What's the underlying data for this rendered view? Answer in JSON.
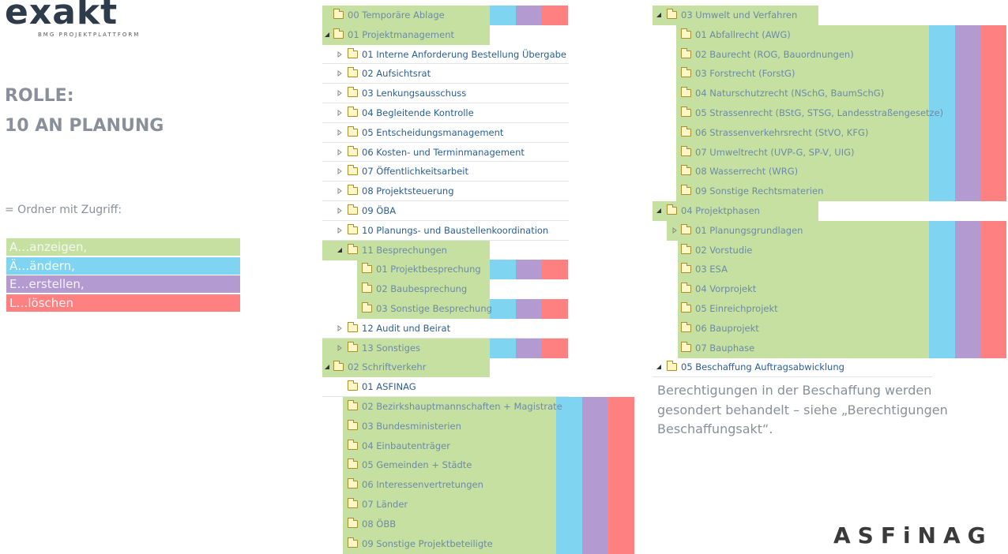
{
  "header": {
    "logo": "exakt",
    "tagline": "BMG PROJEKTPLATTFORM"
  },
  "role": {
    "label": "ROLLE:",
    "name": "10 AN PLANUNG"
  },
  "legend": {
    "title": "= Ordner mit Zugriff:",
    "items": [
      "A…anzeigen,",
      "Ä…ändern,",
      "E…erstellen,",
      "L…löschen"
    ]
  },
  "tree_left": [
    "00 Temporäre Ablage",
    "01 Projektmanagement",
    "01 Interne Anforderung Bestellung Übergabe",
    "02 Aufsichtsrat",
    "03 Lenkungsausschuss",
    "04 Begleitende Kontrolle",
    "05 Entscheidungsmanagement",
    "06 Kosten- und Terminmanagement",
    "07 Öffentlichkeitsarbeit",
    "08 Projektsteuerung",
    "09 ÖBA",
    "10 Planungs- und Baustellenkoordination",
    "11 Besprechungen",
    "01 Projektbesprechung",
    "02 Baubesprechung",
    "03 Sonstige Besprechung",
    "12 Audit und Beirat",
    "13 Sonstiges",
    "02 Schriftverkehr",
    "01 ASFINAG",
    "02 Bezirkshauptmannschaften + Magistrate",
    "03 Bundesministerien",
    "04 Einbautenträger",
    "05 Gemeinden + Städte",
    "06 Interessenvertretungen",
    "07 Länder",
    "08 ÖBB",
    "09 Sonstige Projektbeteiligte"
  ],
  "tree_right": [
    "03 Umwelt und Verfahren",
    "01 Abfallrecht (AWG)",
    "02 Baurecht (ROG, Bauordnungen)",
    "03 Forstrecht (ForstG)",
    "04 Naturschutzrecht (NSchG, BaumSchG)",
    "05 Strassenrecht (BStG, STSG, Landesstraßengesetze)",
    "06 Strassenverkehrsrecht (StVO, KFG)",
    "07 Umweltrecht (UVP-G, SP-V, UIG)",
    "08 Wasserrecht (WRG)",
    "09 Sonstige Rechtsmaterien",
    "04 Projektphasen",
    "01 Planungsgrundlagen",
    "02 Vorstudie",
    "03 ESA",
    "04 Vorprojekt",
    "05 Einreichprojekt",
    "06 Bauprojekt",
    "07 Bauphase",
    "05 Beschaffung Auftragsabwicklung"
  ],
  "note": [
    "Berechtigungen in der Beschaffung werden",
    "gesondert behandelt – siehe „Berechtigungen",
    "Beschaffungsakt“."
  ],
  "footer_logo": "ASFiNAG"
}
